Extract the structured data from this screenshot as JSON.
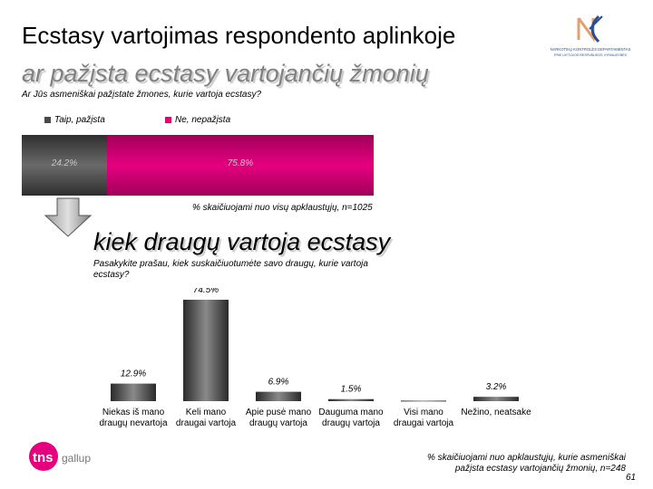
{
  "header": {
    "title": "Ecstasy vartojimas respondento aplinkoje",
    "subtitle": "ar pažįsta ecstasy vartojančių žmonių",
    "logo_text_line1": "NARKOTIKŲ KONTROLĖS DEPARTAMENTAS",
    "logo_text_line2": "PRIE LIETUVOS RESPUBLIKOS VYRIAUSYBĖS"
  },
  "section1": {
    "question": "Ar Jūs asmeniškai pažįstate žmones, kurie vartoja ecstasy?",
    "note": "% skaičiuojami nuo visų apklaustųjų, n=1025"
  },
  "section2": {
    "heading": "kiek draugų vartoja ecstasy",
    "question": "Pasakykite prašau, kiek suskaičiuotumėte savo draugų, kurie vartoja ecstasy?",
    "note": "% skaičiuojami nuo apklaustųjų, kurie asmeniškai pažįsta ecstasy vartojančių žmonių, n=248"
  },
  "footer": {
    "page_number": "61",
    "logo_brand": "tns",
    "logo_sub": "gallup"
  },
  "colors": {
    "dark": "#4a4a4a",
    "magenta": "#e6007e",
    "subtitle_grey": "#808080"
  },
  "chart_data": [
    {
      "type": "bar",
      "orientation": "horizontal-stacked",
      "categories": [
        "Taip, pažįsta",
        "Ne, nepažįsta"
      ],
      "values": [
        24.2,
        75.8
      ],
      "labels": [
        "24.2%",
        "75.8%"
      ],
      "legend": "top",
      "grid": false
    },
    {
      "type": "bar",
      "categories": [
        "Niekas iš mano draugų nevartoja",
        "Keli mano draugai vartoja",
        "Apie pusė mano draugų vartoja",
        "Dauguma mano draugų vartoja",
        "Visi mano draugai vartoja",
        "Nežino, neatsake"
      ],
      "values": [
        12.9,
        74.5,
        6.9,
        1.5,
        0.4,
        3.2
      ],
      "labels": [
        "12.9%",
        "74.5%",
        "6.9%",
        "1.5%",
        "",
        "3.2%"
      ],
      "grid": false
    }
  ]
}
